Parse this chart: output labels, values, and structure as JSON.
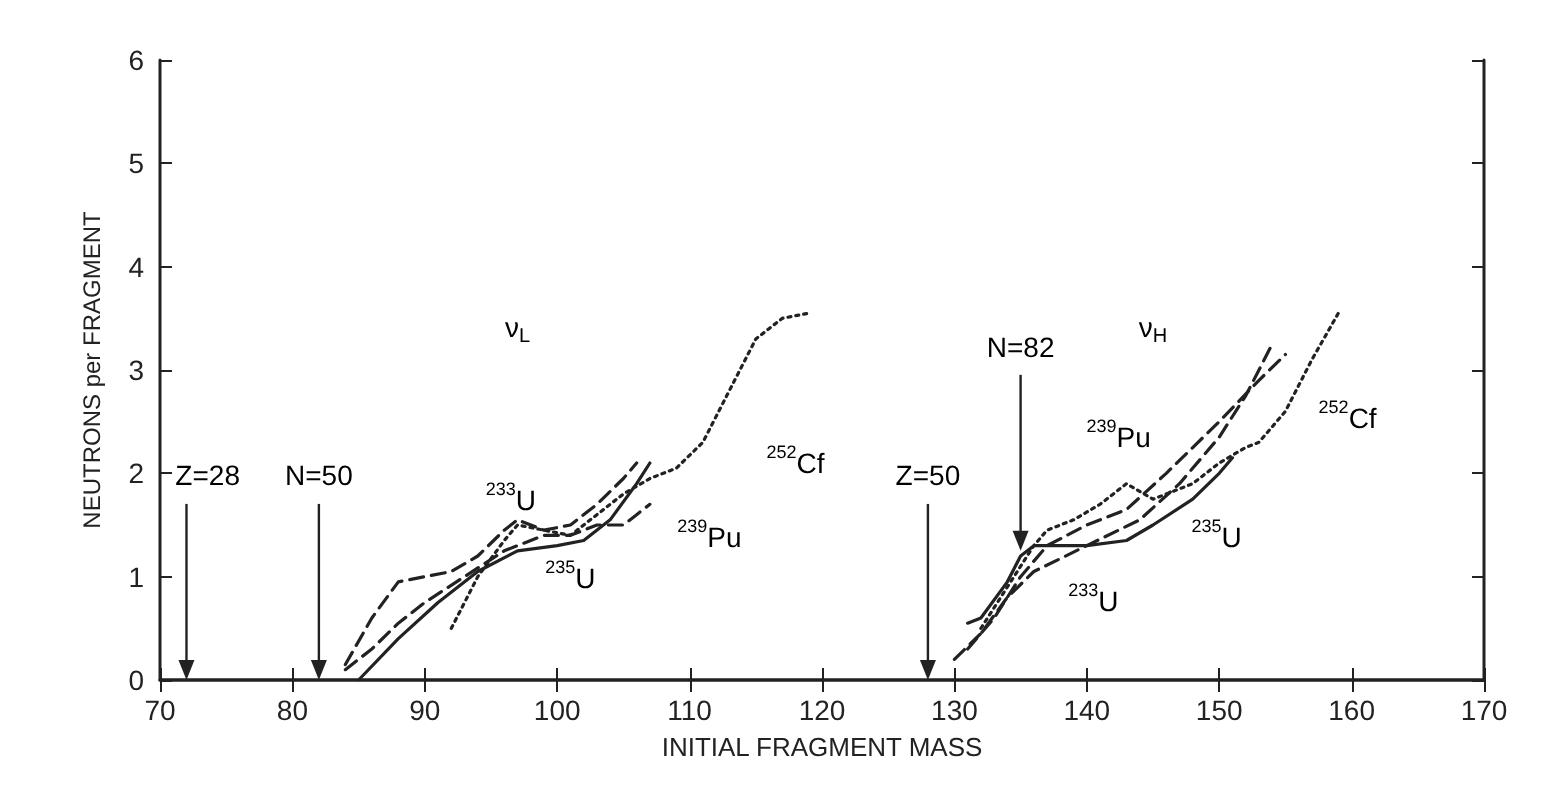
{
  "chart_data": {
    "type": "line",
    "xlabel": "INITIAL FRAGMENT MASS",
    "ylabel": "NEUTRONS per FRAGMENT",
    "xlim": [
      70,
      170
    ],
    "xticks": [
      70,
      80,
      90,
      100,
      110,
      120,
      130,
      140,
      150,
      160,
      170
    ],
    "ylim": [
      0,
      6
    ],
    "yticks": [
      0,
      1,
      2,
      3,
      4,
      5,
      6
    ],
    "grid": false,
    "marker": "none",
    "series": [
      {
        "color": "#222222",
        "line_style": "solid",
        "x": [
          85,
          88,
          91,
          94,
          97,
          100,
          102,
          104,
          106,
          107,
          null,
          131,
          132,
          134,
          135,
          136,
          138,
          140,
          143,
          145,
          148,
          150,
          151
        ],
        "values": [
          0,
          0.4,
          0.75,
          1.05,
          1.25,
          1.3,
          1.35,
          1.55,
          1.9,
          2.1,
          null,
          0.55,
          0.6,
          0.95,
          1.2,
          1.3,
          1.3,
          1.3,
          1.35,
          1.5,
          1.75,
          2.0,
          2.15
        ]
      },
      {
        "color": "#222222",
        "line_style": "dashed",
        "x": [
          84,
          86,
          88,
          90,
          92,
          94,
          96,
          97,
          99,
          101,
          103,
          105,
          106,
          null,
          130,
          132,
          134,
          136,
          140,
          144,
          147,
          150,
          152,
          154
        ],
        "values": [
          0.15,
          0.6,
          0.95,
          1.0,
          1.05,
          1.2,
          1.45,
          1.55,
          1.45,
          1.5,
          1.7,
          1.95,
          2.1,
          null,
          0.2,
          0.45,
          0.8,
          1.05,
          1.3,
          1.55,
          1.9,
          2.35,
          2.75,
          3.25
        ]
      },
      {
        "color": "#222222",
        "line_style": "dashed",
        "x": [
          84,
          86,
          88,
          90,
          93,
          96,
          99,
          101,
          103,
          105,
          106,
          107,
          null,
          131,
          133,
          135,
          137,
          140,
          143,
          146,
          150,
          153,
          155
        ],
        "values": [
          0.1,
          0.3,
          0.55,
          0.75,
          1.0,
          1.25,
          1.4,
          1.4,
          1.5,
          1.5,
          1.6,
          1.7,
          null,
          0.3,
          0.6,
          1.0,
          1.3,
          1.5,
          1.65,
          2.0,
          2.5,
          2.9,
          3.15
        ]
      },
      {
        "color": "#222222",
        "line_style": "dotted",
        "x": [
          92,
          94,
          96,
          97,
          99,
          101,
          103,
          105,
          107,
          109,
          111,
          113,
          115,
          117,
          119,
          null,
          132,
          134,
          136,
          137,
          139,
          141,
          143,
          145,
          148,
          150,
          152,
          153,
          155,
          157,
          159
        ],
        "values": [
          0.5,
          1.0,
          1.35,
          1.5,
          1.45,
          1.4,
          1.6,
          1.8,
          1.95,
          2.05,
          2.3,
          2.8,
          3.3,
          3.5,
          3.55,
          null,
          0.5,
          0.9,
          1.3,
          1.45,
          1.55,
          1.7,
          1.9,
          1.75,
          1.9,
          2.1,
          2.25,
          2.3,
          2.6,
          3.1,
          3.55
        ]
      }
    ],
    "annotations": [
      "ν$_{L}$",
      "ν$_{H}$",
      "$^{233}$U",
      "$^{235}$U",
      "$^{239}$Pu",
      "$^{252}$Cf",
      "$^{239}$Pu",
      "$^{235}$U",
      "$^{233}$U",
      "$^{252}$Cf",
      "Z=28",
      "N=50",
      "Z=50",
      {
        "text": "N=82",
        "x": 135,
        "y": 1.25
      }
    ]
  }
}
